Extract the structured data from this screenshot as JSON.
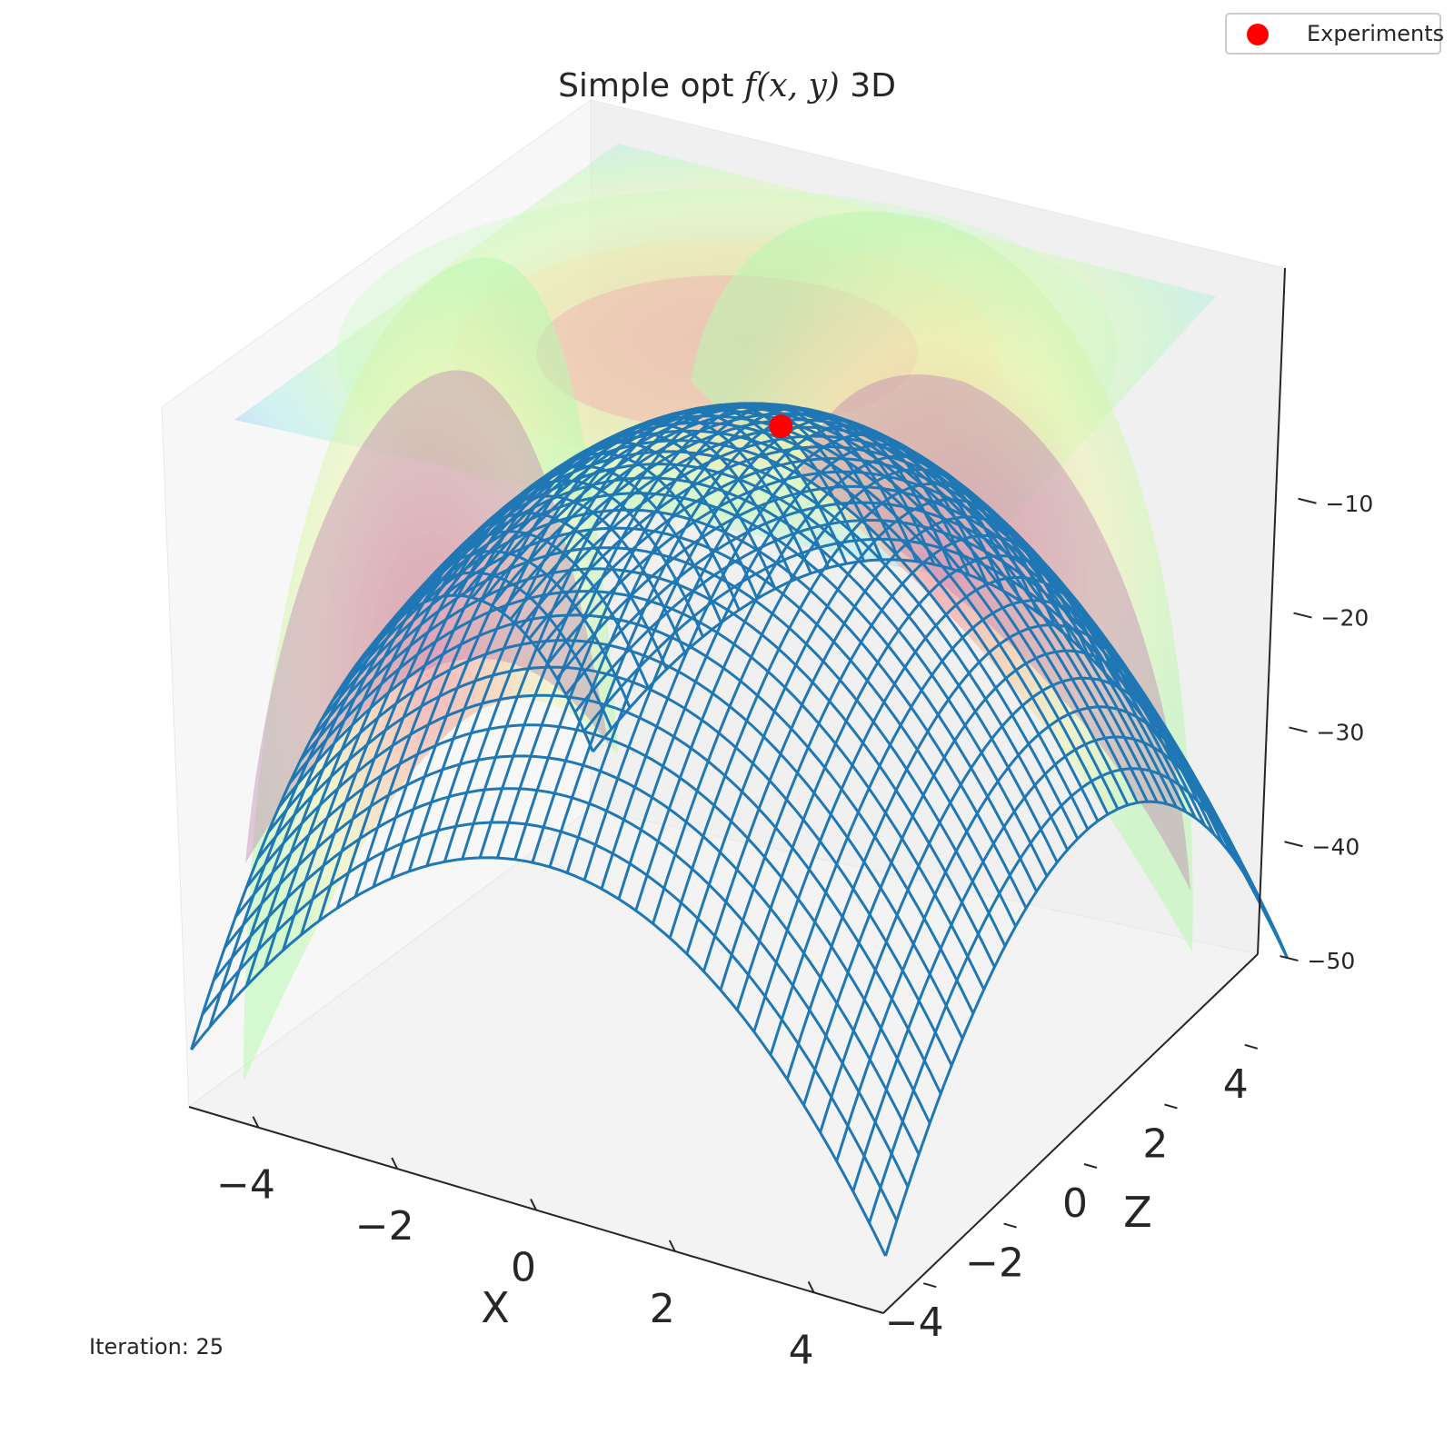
{
  "figure": {
    "title_prefix": "Simple opt ",
    "title_math": "f(x, y)",
    "title_suffix": " 3D",
    "iteration_text": "Iteration: 25"
  },
  "legend": {
    "label": "Experiments",
    "marker_color": "#ff0000"
  },
  "chart_data": {
    "type": "surface3d",
    "surface_type": "wireframe",
    "wire_color": "#1f77b4",
    "xlabel": "X",
    "ylabel": "Z",
    "zlabel": "",
    "x_ticks": [
      -4,
      -2,
      0,
      2,
      4
    ],
    "y_ticks": [
      -4,
      -2,
      0,
      2,
      4
    ],
    "z_ticks": [
      -10,
      -20,
      -30,
      -40,
      -50
    ],
    "x_tick_labels": [
      "−4",
      "−2",
      "0",
      "2",
      "4"
    ],
    "y_tick_labels": [
      "−4",
      "−2",
      "0",
      "2",
      "4"
    ],
    "z_tick_labels": [
      "−10",
      "−20",
      "−30",
      "−40",
      "−50"
    ],
    "xlim": [
      -5,
      5
    ],
    "ylim": [
      -5,
      5
    ],
    "zlim": [
      -55,
      5
    ],
    "surface_function": "z = -(x^2 + y^2)",
    "wire_count": 40,
    "contour_projection": {
      "plane": "top",
      "colormap": "rainbow",
      "alpha": 0.35
    },
    "experiments": [
      {
        "x": 0.1,
        "y": 0.3,
        "z": -0.1
      }
    ]
  }
}
